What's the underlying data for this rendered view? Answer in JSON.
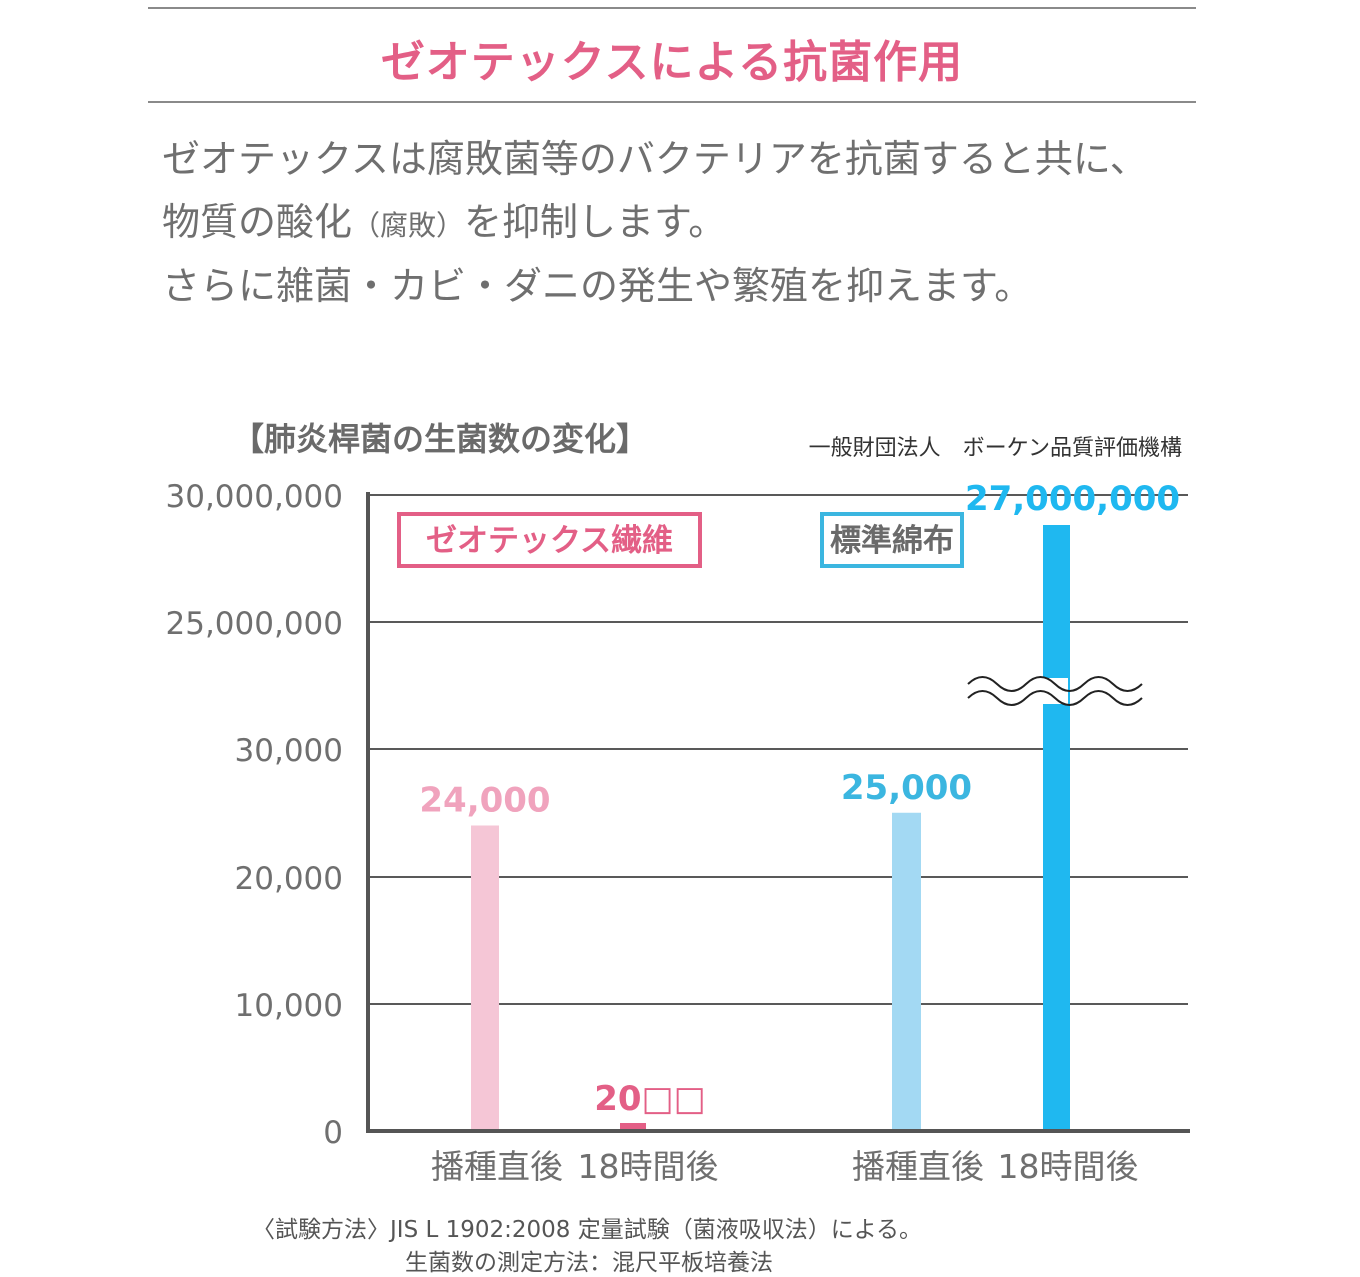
{
  "header": {
    "title": "ゼオテックスによる抗菌作用"
  },
  "intro": {
    "line1": "ゼオテックスは腐敗菌等のバクテリアを抗菌すると共に、",
    "line2_a": "物質の酸化",
    "line2_b": "（腐敗）",
    "line2_c": "を抑制します。",
    "line3": "さらに雑菌・カビ・ダニの発生や繁殖を抑えます。"
  },
  "chart_data": {
    "type": "bar",
    "title": "【肺炎桿菌の生菌数の変化】",
    "source": "一般財団法人　ボーケン品質評価機構",
    "ytick_labels": [
      "0",
      "10,000",
      "20,000",
      "30,000",
      "25,000,000",
      "30,000,000"
    ],
    "y_axis_break": true,
    "groups": [
      {
        "name": "ゼオテックス繊維",
        "color": "#e35f86",
        "bars": [
          {
            "category": "播種直後",
            "value": 24000,
            "label": "24,000",
            "color": "#f5c6d6",
            "label_color": "#f0a3bd"
          },
          {
            "category": "18時間後",
            "value": 200,
            "label": "20□□",
            "color": "#e35f86",
            "label_color": "#e35f86"
          }
        ]
      },
      {
        "name": "標準綿布",
        "color": "#3bb6e0",
        "bars": [
          {
            "category": "播種直後",
            "value": 25000,
            "label": "25,000",
            "color": "#a3d9f3",
            "label_color": "#3bb6e0"
          },
          {
            "category": "18時間後",
            "value": 27000000,
            "label": "27,000,000",
            "color": "#1fb8f0",
            "label_color": "#1fb8f0"
          }
        ]
      }
    ]
  },
  "footnote": {
    "line1": "〈試験方法〉JIS L 1902:2008 定量試験（菌液吸収法）による。",
    "line2": "生菌数の測定方法：混尺平板培養法"
  }
}
